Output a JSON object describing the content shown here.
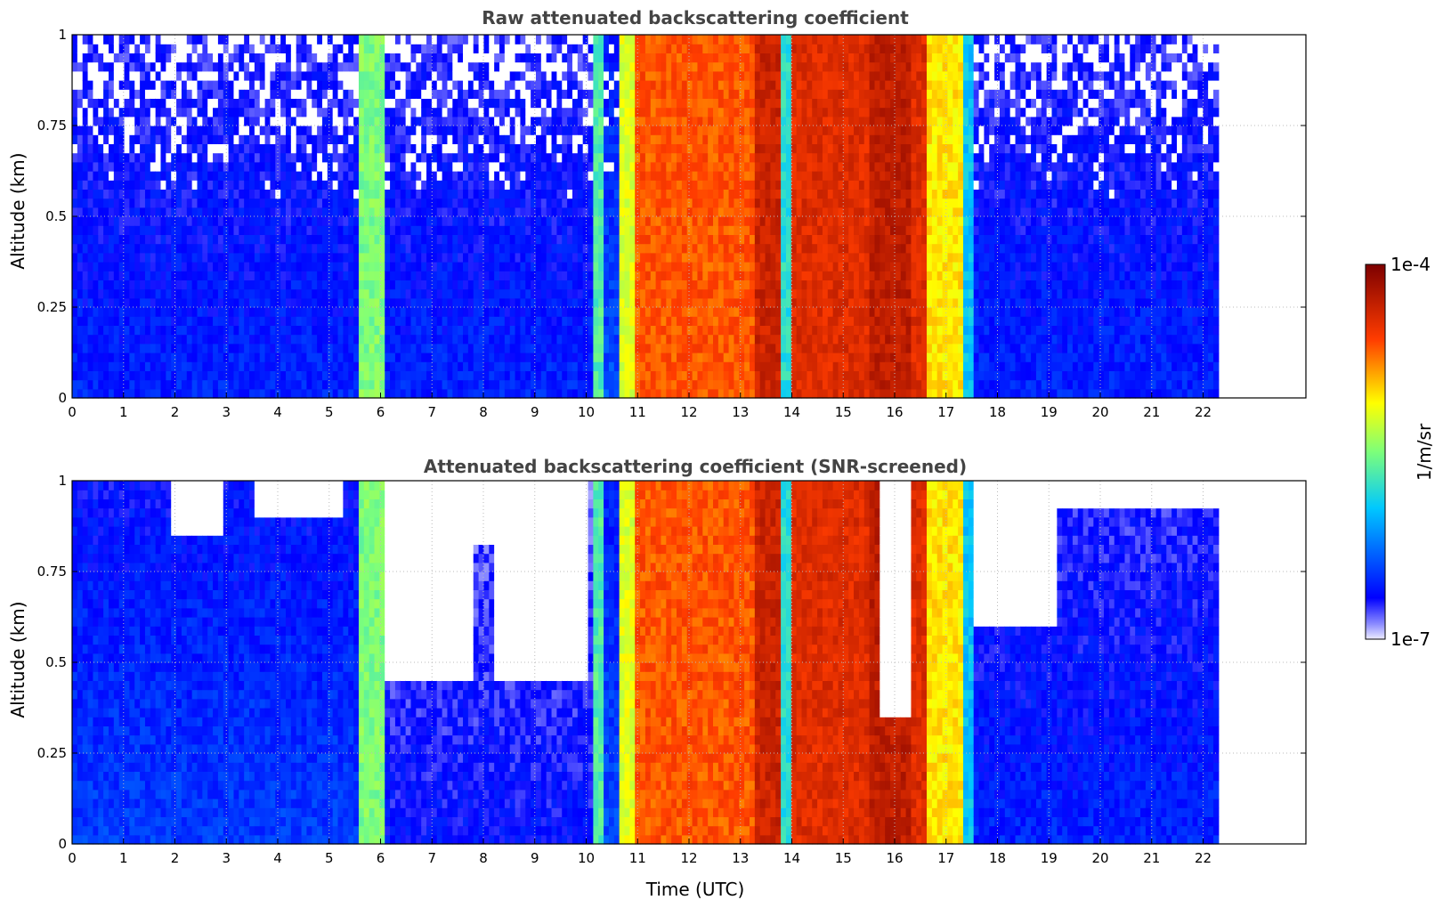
{
  "chart_data": [
    {
      "type": "heatmap",
      "title": "Raw attenuated backscattering coefficient",
      "xlabel": "",
      "ylabel": "Altitude (km)",
      "xlim": [
        0,
        24
      ],
      "ylim": [
        0,
        1
      ],
      "x_ticks": [
        "0",
        "1",
        "2",
        "3",
        "4",
        "5",
        "6",
        "7",
        "8",
        "9",
        "10",
        "11",
        "12",
        "13",
        "14",
        "15",
        "16",
        "17",
        "18",
        "19",
        "20",
        "21",
        "22"
      ],
      "y_ticks": [
        "0",
        "0.25",
        "0.5",
        "0.75",
        "1"
      ],
      "grid": true,
      "data_end_time": 22.3,
      "column_levels": [
        {
          "from": 0.0,
          "to": 5.6,
          "level": 0.15
        },
        {
          "from": 5.6,
          "to": 6.1,
          "level": 0.5
        },
        {
          "from": 6.1,
          "to": 10.1,
          "level": 0.15
        },
        {
          "from": 10.1,
          "to": 10.35,
          "level": 0.45
        },
        {
          "from": 10.35,
          "to": 10.6,
          "level": 0.2
        },
        {
          "from": 10.6,
          "to": 10.9,
          "level": 0.6
        },
        {
          "from": 10.9,
          "to": 13.3,
          "level": 0.78
        },
        {
          "from": 13.3,
          "to": 13.8,
          "level": 0.88
        },
        {
          "from": 13.8,
          "to": 14.0,
          "level": 0.4
        },
        {
          "from": 14.0,
          "to": 15.5,
          "level": 0.85
        },
        {
          "from": 15.5,
          "to": 16.3,
          "level": 0.9
        },
        {
          "from": 16.3,
          "to": 16.6,
          "level": 0.85
        },
        {
          "from": 16.6,
          "to": 17.3,
          "level": 0.65
        },
        {
          "from": 17.3,
          "to": 17.5,
          "level": 0.35
        },
        {
          "from": 17.5,
          "to": 22.3,
          "level": 0.15
        }
      ],
      "screened": false
    },
    {
      "type": "heatmap",
      "title": "Attenuated backscattering coefficient (SNR-screened)",
      "xlabel": "Time (UTC)",
      "ylabel": "Altitude (km)",
      "xlim": [
        0,
        24
      ],
      "ylim": [
        0,
        1
      ],
      "x_ticks": [
        "0",
        "1",
        "2",
        "3",
        "4",
        "5",
        "6",
        "7",
        "8",
        "9",
        "10",
        "11",
        "12",
        "13",
        "14",
        "15",
        "16",
        "17",
        "18",
        "19",
        "20",
        "21",
        "22"
      ],
      "y_ticks": [
        "0",
        "0.25",
        "0.5",
        "0.75",
        "1"
      ],
      "grid": true,
      "data_end_time": 22.3,
      "column_levels": [
        {
          "from": 0.0,
          "to": 5.6,
          "level": 0.18
        },
        {
          "from": 5.6,
          "to": 6.1,
          "level": 0.5
        },
        {
          "from": 6.1,
          "to": 10.1,
          "level": 0.12
        },
        {
          "from": 10.1,
          "to": 10.35,
          "level": 0.45
        },
        {
          "from": 10.35,
          "to": 10.6,
          "level": 0.2
        },
        {
          "from": 10.6,
          "to": 10.9,
          "level": 0.6
        },
        {
          "from": 10.9,
          "to": 13.3,
          "level": 0.78
        },
        {
          "from": 13.3,
          "to": 13.8,
          "level": 0.88
        },
        {
          "from": 13.8,
          "to": 14.0,
          "level": 0.4
        },
        {
          "from": 14.0,
          "to": 15.5,
          "level": 0.85
        },
        {
          "from": 15.5,
          "to": 16.3,
          "level": 0.9
        },
        {
          "from": 16.3,
          "to": 16.6,
          "level": 0.85
        },
        {
          "from": 16.6,
          "to": 17.3,
          "level": 0.65
        },
        {
          "from": 17.3,
          "to": 17.5,
          "level": 0.35
        },
        {
          "from": 17.5,
          "to": 22.3,
          "level": 0.15
        }
      ],
      "screened_gaps": [
        {
          "from": 1.9,
          "to": 2.9,
          "above": 0.86
        },
        {
          "from": 3.5,
          "to": 5.3,
          "above": 0.9
        },
        {
          "from": 6.1,
          "to": 7.8,
          "above": 0.45
        },
        {
          "from": 7.8,
          "to": 8.2,
          "above": 0.82
        },
        {
          "from": 8.2,
          "to": 10.0,
          "above": 0.45
        },
        {
          "from": 15.7,
          "to": 16.3,
          "above": 0.35
        },
        {
          "from": 17.5,
          "to": 19.2,
          "above": 0.6
        },
        {
          "from": 19.2,
          "to": 22.3,
          "above": 0.93
        }
      ],
      "screened": true
    }
  ],
  "colorbar": {
    "label": "1/m/sr",
    "max_label": "1e-4",
    "min_label": "1e-7",
    "colormap": "jet"
  },
  "colors": {
    "nodata": "#ffffff",
    "grid": "#bbbbbb",
    "title": "#444444"
  }
}
